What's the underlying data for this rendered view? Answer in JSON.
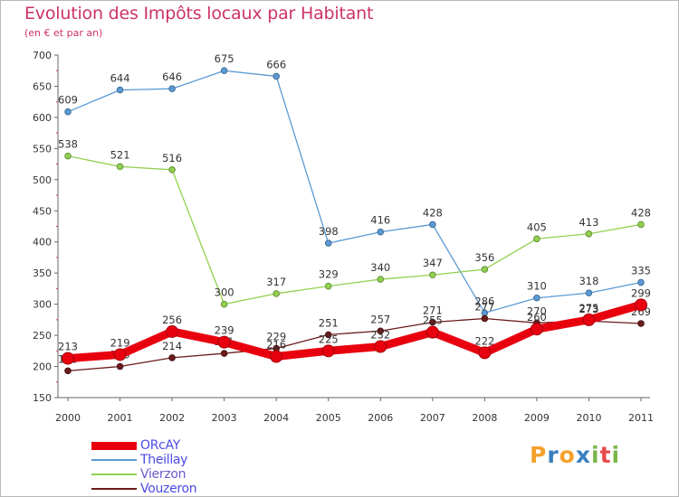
{
  "chart_data": {
    "type": "line",
    "title": "Evolution des Impôts locaux par Habitant",
    "subtitle": "(en € et par an)",
    "xlabel": "",
    "ylabel": "",
    "ylim": [
      150,
      700
    ],
    "yticks": [
      150,
      200,
      250,
      300,
      350,
      400,
      450,
      500,
      550,
      600,
      650,
      700
    ],
    "grid": false,
    "categories": [
      "2000",
      "2001",
      "2002",
      "2003",
      "2004",
      "2005",
      "2006",
      "2007",
      "2008",
      "2009",
      "2010",
      "2011"
    ],
    "series": [
      {
        "name": "Theillay",
        "color": "#5b9bd5",
        "values": [
          609,
          644,
          646,
          675,
          666,
          398,
          416,
          428,
          286,
          310,
          318,
          335
        ]
      },
      {
        "name": "Vierzon",
        "color": "#92d050",
        "values": [
          538,
          521,
          516,
          300,
          317,
          329,
          340,
          347,
          356,
          405,
          413,
          428
        ]
      },
      {
        "name": "Vouzeron",
        "color": "#6b1c1c",
        "values": [
          193,
          200,
          214,
          221,
          229,
          251,
          257,
          271,
          277,
          270,
          273,
          269
        ]
      },
      {
        "name": "ORcAY",
        "color": "#e8000f",
        "values": [
          213,
          219,
          256,
          239,
          216,
          225,
          232,
          255,
          222,
          260,
          275,
          299
        ]
      }
    ],
    "legend_position": "bottom-left"
  },
  "brand": {
    "letters": [
      "P",
      "r",
      "o",
      "x",
      "i",
      "t",
      "i"
    ],
    "colors": [
      "#f4a12c",
      "#3a7fc0",
      "#f4a12c",
      "#3a7fc0",
      "#7ab648",
      "#e84b4b",
      "#7ab648"
    ]
  }
}
